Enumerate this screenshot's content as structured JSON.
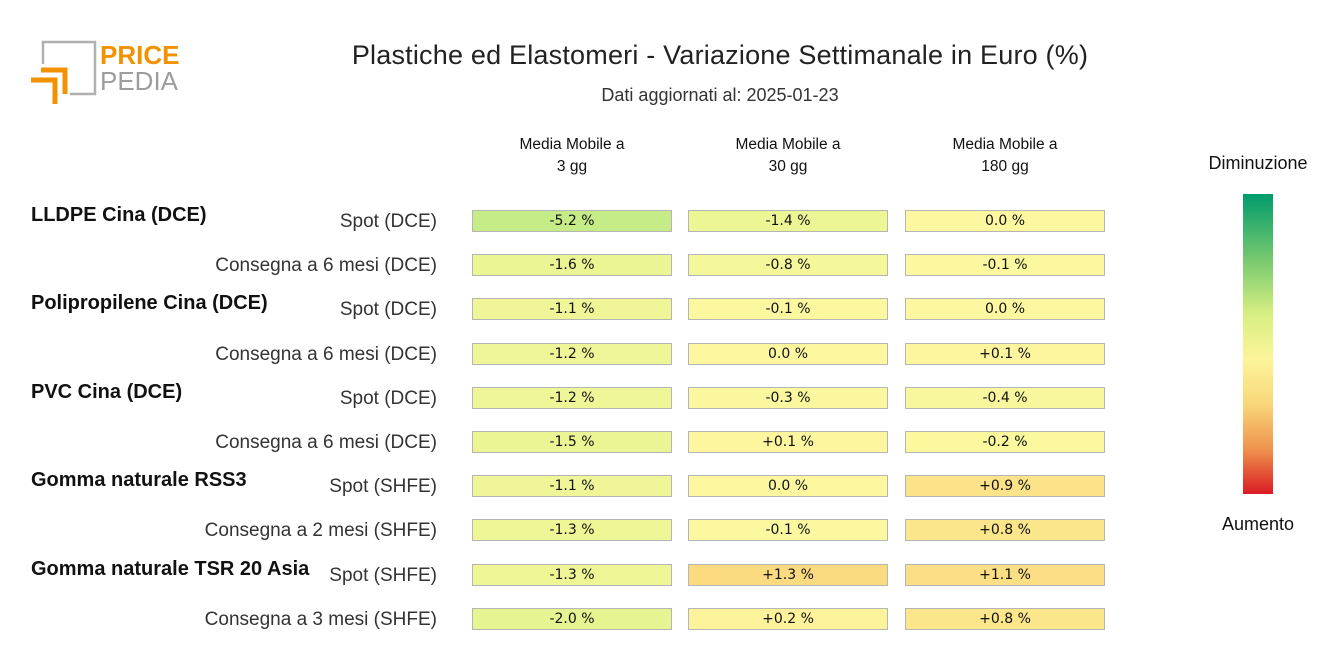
{
  "logo": {
    "line1": "PRICE",
    "line2": "PEDIA",
    "accent_color": "#f39200",
    "gray_color": "#9d9d9d"
  },
  "chart_data": {
    "type": "table",
    "title": "Plastiche ed Elastomeri - Variazione Settimanale in Euro (%)",
    "subtitle": "Dati aggiornati al: 2025-01-23",
    "columns": [
      {
        "line1": "Media Mobile a",
        "line2": "3 gg"
      },
      {
        "line1": "Media Mobile a",
        "line2": "30 gg"
      },
      {
        "line1": "Media Mobile a",
        "line2": "180 gg"
      }
    ],
    "groups": [
      {
        "name": "LLDPE Cina (DCE)",
        "rows": [
          {
            "label": "Spot (DCE)",
            "values": [
              -5.2,
              -1.4,
              0.0
            ]
          },
          {
            "label": "Consegna a 6 mesi (DCE)",
            "values": [
              -1.6,
              -0.8,
              -0.1
            ]
          }
        ]
      },
      {
        "name": "Polipropilene Cina (DCE)",
        "rows": [
          {
            "label": "Spot (DCE)",
            "values": [
              -1.1,
              -0.1,
              0.0
            ]
          },
          {
            "label": "Consegna a 6 mesi (DCE)",
            "values": [
              -1.2,
              0.0,
              0.1
            ]
          }
        ]
      },
      {
        "name": "PVC Cina (DCE)",
        "rows": [
          {
            "label": "Spot (DCE)",
            "values": [
              -1.2,
              -0.3,
              -0.4
            ]
          },
          {
            "label": "Consegna a 6 mesi (DCE)",
            "values": [
              -1.5,
              0.1,
              -0.2
            ]
          }
        ]
      },
      {
        "name": "Gomma naturale RSS3",
        "rows": [
          {
            "label": "Spot (SHFE)",
            "values": [
              -1.1,
              0.0,
              0.9
            ]
          },
          {
            "label": "Consegna a 2 mesi (SHFE)",
            "values": [
              -1.3,
              -0.1,
              0.8
            ]
          }
        ]
      },
      {
        "name": "Gomma naturale TSR 20 Asia",
        "rows": [
          {
            "label": "Spot (SHFE)",
            "values": [
              -1.3,
              1.3,
              1.1
            ]
          },
          {
            "label": "Consegna a 3 mesi (SHFE)",
            "values": [
              -2.0,
              0.2,
              0.8
            ]
          }
        ]
      }
    ],
    "legend": {
      "top_label": "Diminuzione",
      "bottom_label": "Aumento"
    }
  }
}
